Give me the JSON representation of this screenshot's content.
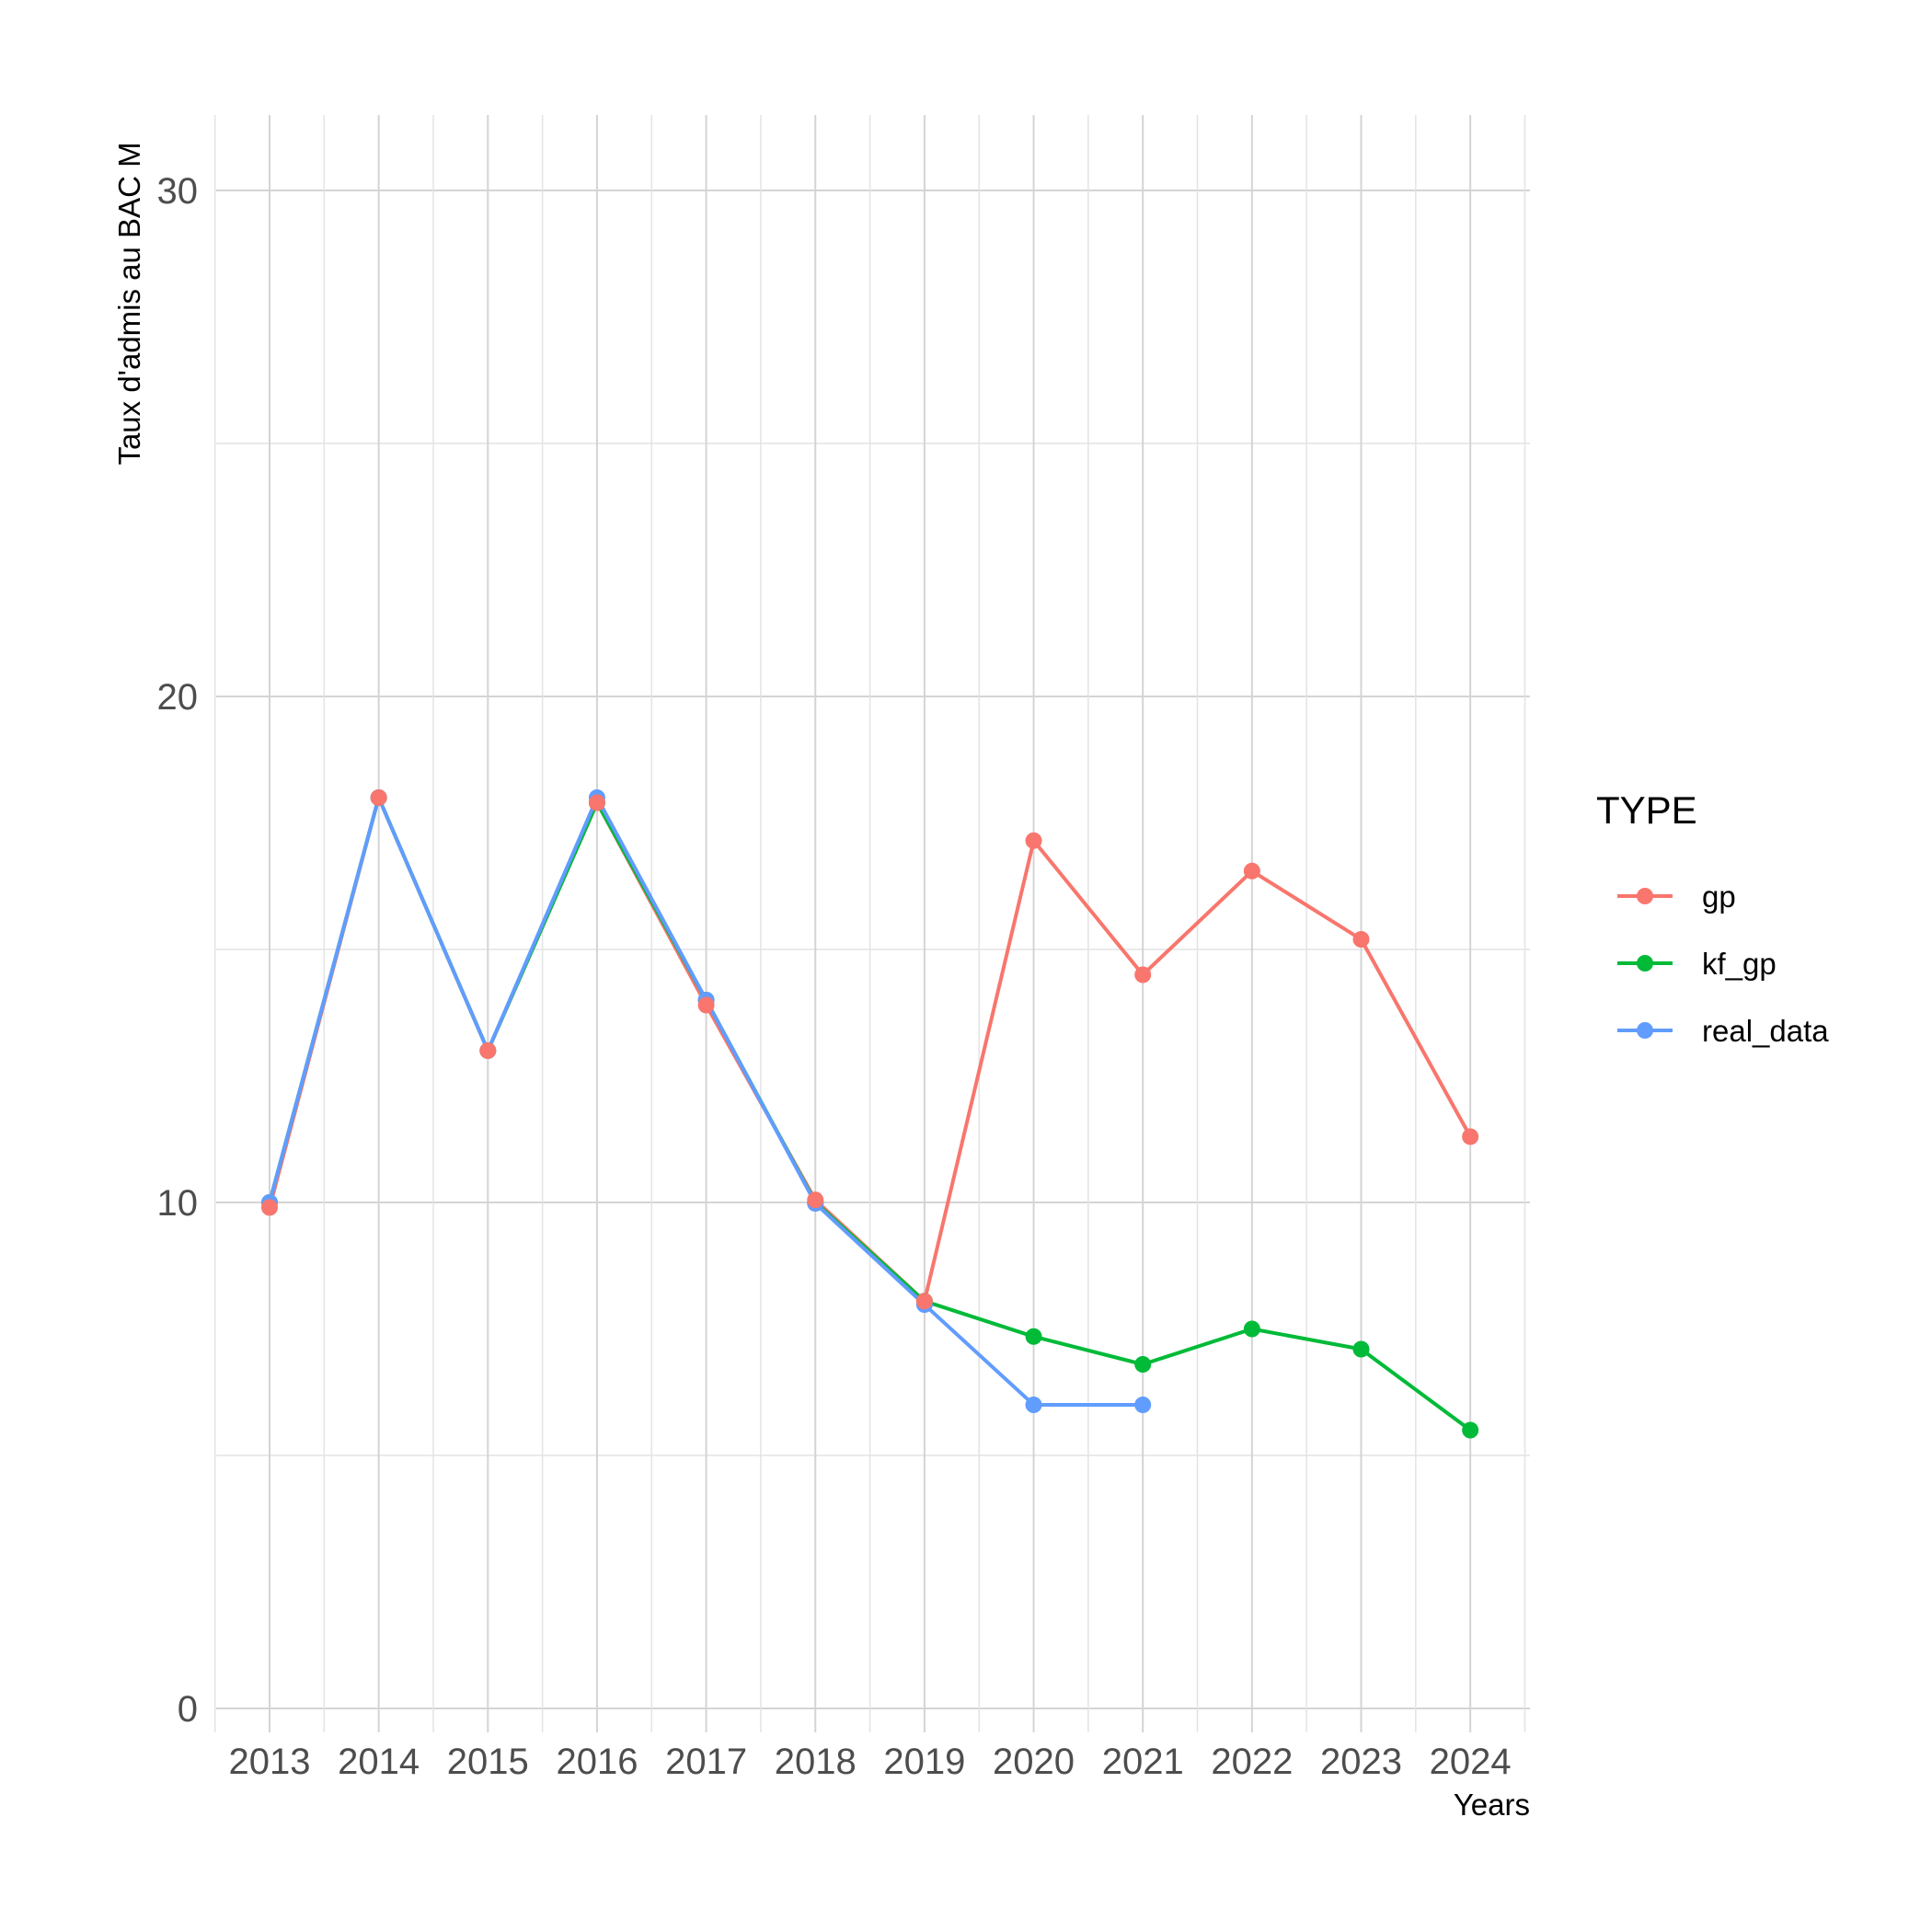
{
  "chart_data": {
    "type": "line",
    "title": "",
    "xlabel": "Years",
    "ylabel": "Taux d'admis au BAC M",
    "x": [
      "2013",
      "2014",
      "2015",
      "2016",
      "2017",
      "2018",
      "2019",
      "2020",
      "2021",
      "2022",
      "2023",
      "2024"
    ],
    "ylim": [
      0,
      30
    ],
    "yticks": [
      0,
      10,
      20,
      30
    ],
    "grid": true,
    "legend": {
      "title": "TYPE",
      "position": "right"
    },
    "series": [
      {
        "name": "gp",
        "color": "#F8766D",
        "values": [
          9.9,
          18.0,
          13.0,
          17.9,
          13.9,
          10.05,
          8.05,
          17.15,
          14.5,
          16.55,
          15.2,
          11.3
        ]
      },
      {
        "name": "kf_gp",
        "color": "#00BA38",
        "values": [
          10.0,
          18.0,
          13.0,
          17.9,
          14.0,
          10.0,
          8.05,
          7.35,
          6.8,
          7.5,
          7.1,
          5.5
        ]
      },
      {
        "name": "real_data",
        "color": "#619CFF",
        "values": [
          10.0,
          18.0,
          13.0,
          18.0,
          14.0,
          9.98,
          7.98,
          6.0,
          6.0,
          null,
          null,
          null
        ]
      }
    ]
  }
}
